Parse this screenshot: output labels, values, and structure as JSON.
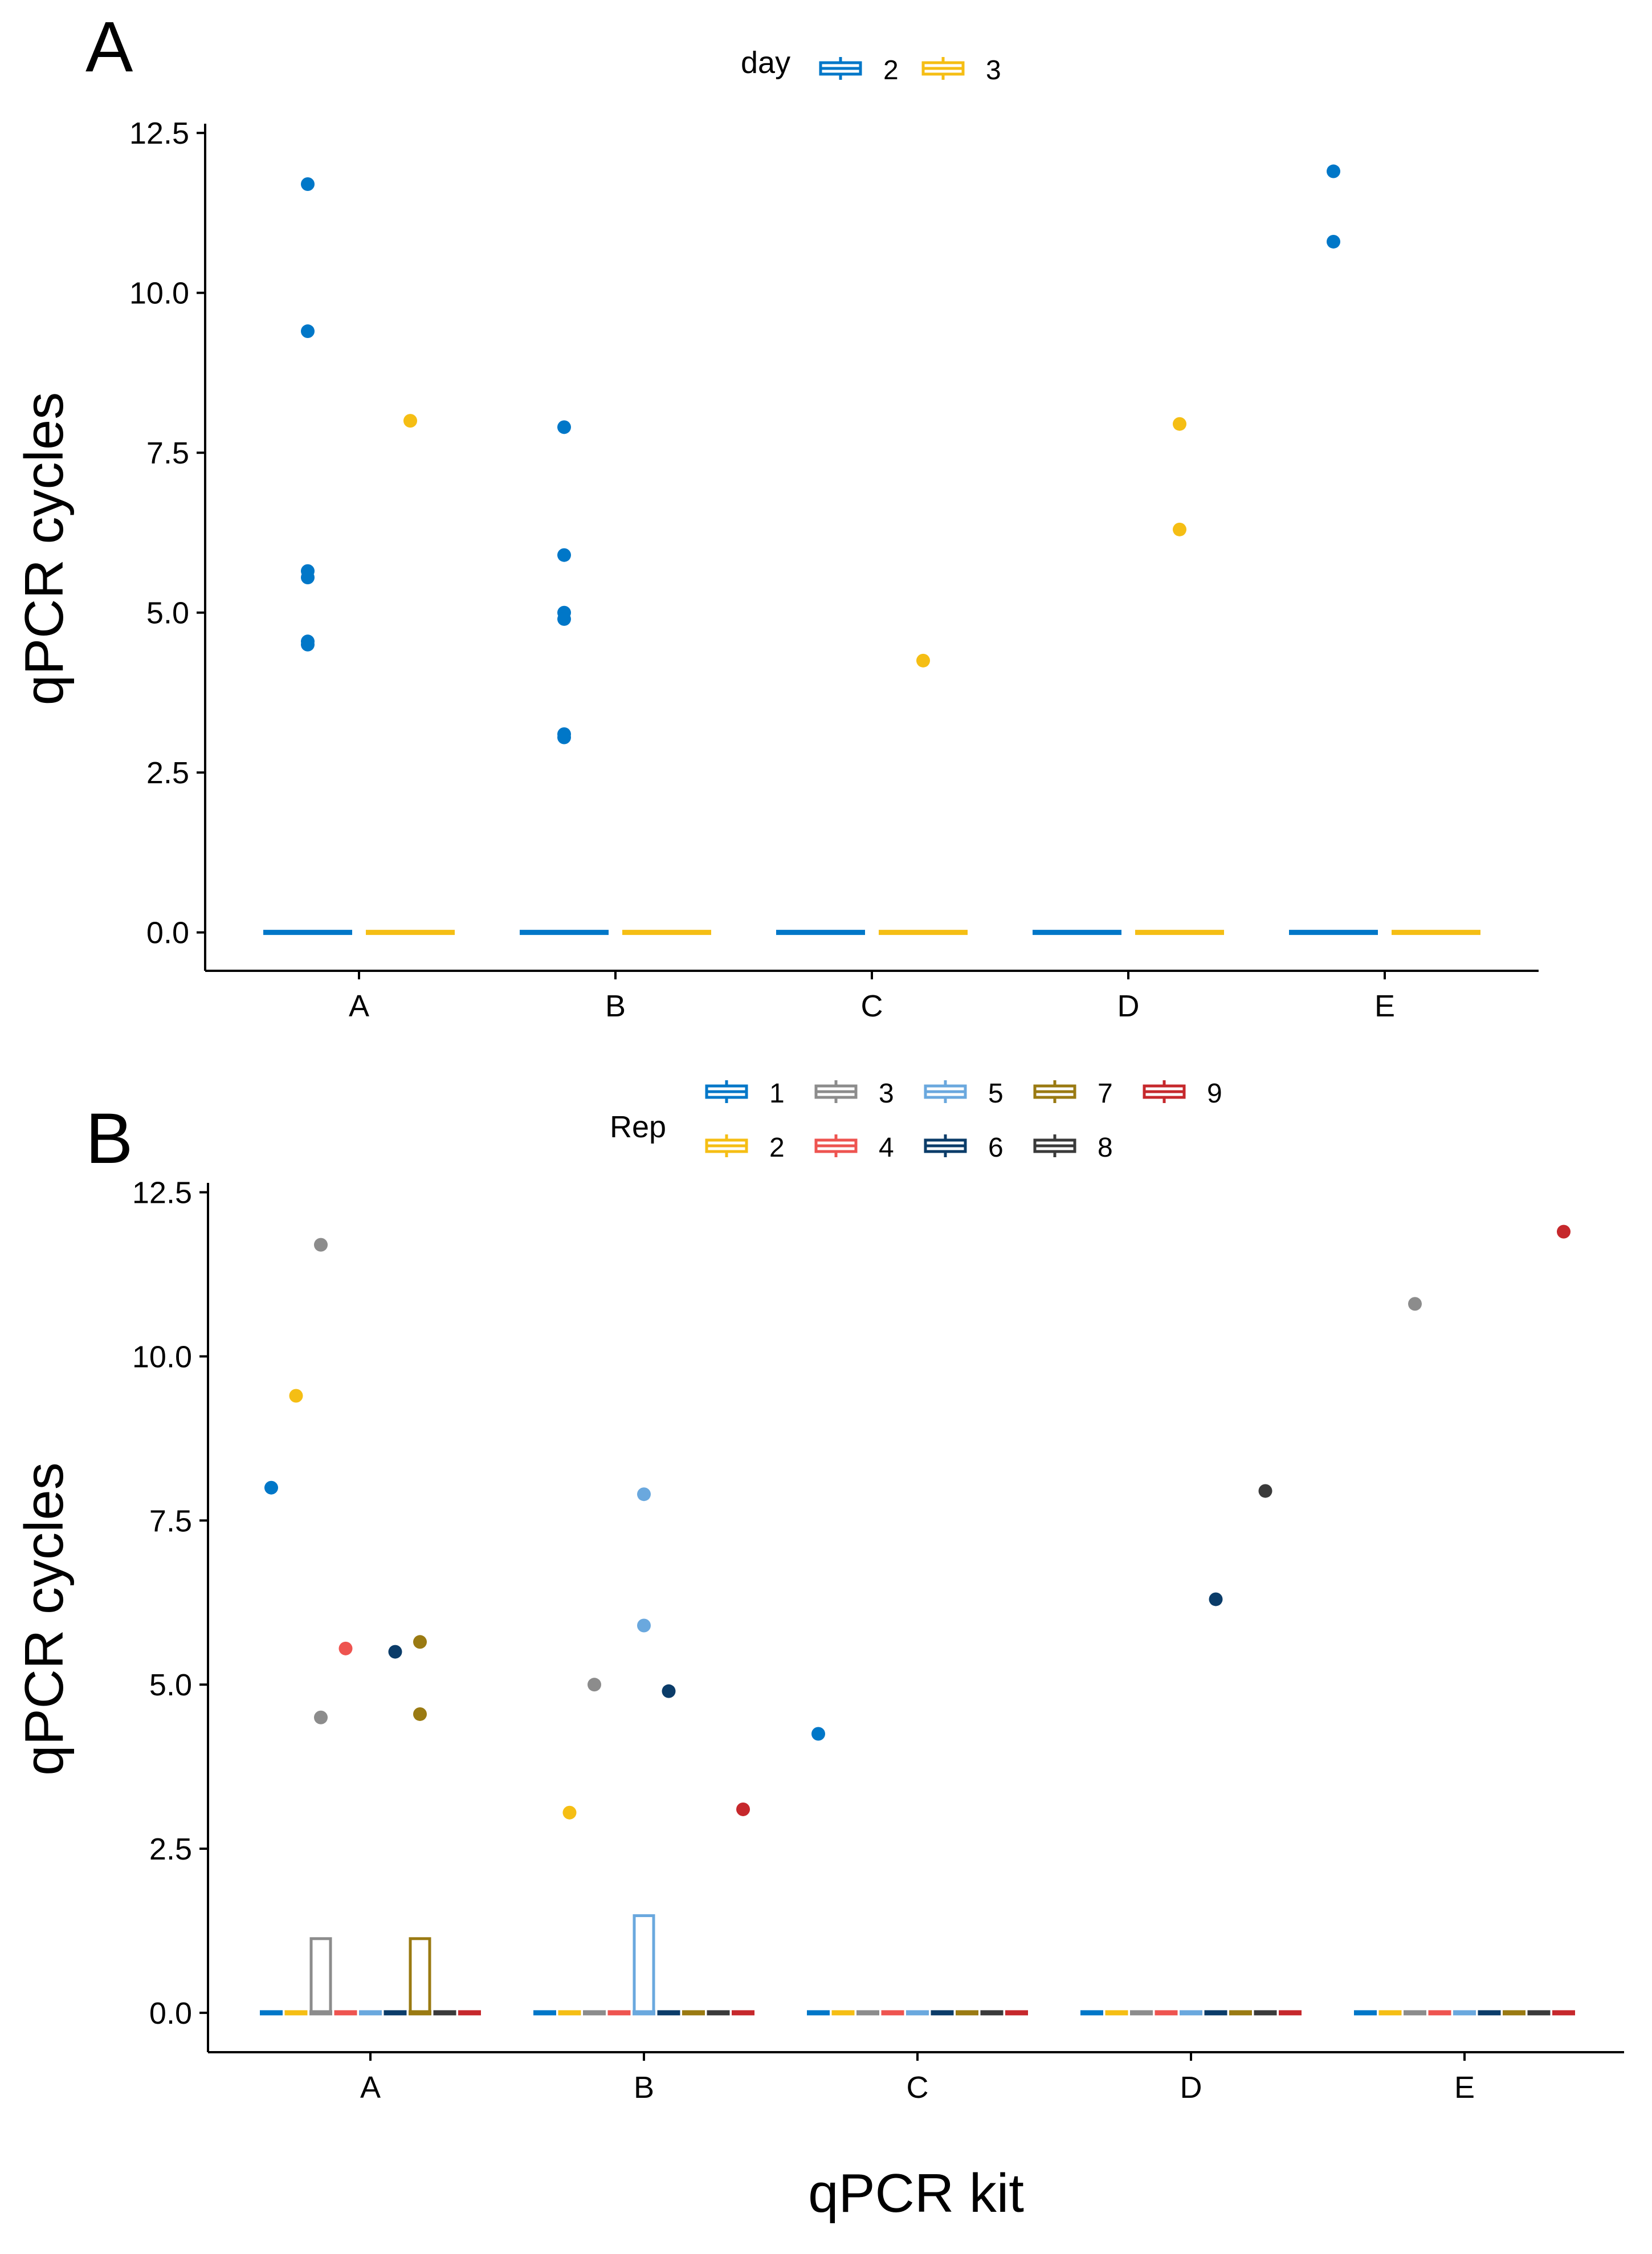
{
  "colors": {
    "axis": "#000000",
    "day": {
      "2": "#0077C8",
      "3": "#F5BE14"
    },
    "rep": {
      "1": "#0077C8",
      "2": "#F5BE14",
      "3": "#8C8C8C",
      "4": "#EE5450",
      "5": "#6AA8DE",
      "6": "#0B3C69",
      "7": "#9A7A12",
      "8": "#3A3A3A",
      "9": "#C6282C"
    }
  },
  "chart_data": [
    {
      "panel_label": "A",
      "type": "scatter",
      "categories": [
        "A",
        "B",
        "C",
        "D",
        "E"
      ],
      "xlabel": "",
      "ylabel": "qPCR cycles",
      "ylim": [
        -0.6,
        12.6
      ],
      "yticks": [
        "0.0",
        "2.5",
        "5.0",
        "7.5",
        "10.0",
        "12.5"
      ],
      "grid": false,
      "legend": {
        "position": "top",
        "title": "day",
        "entries": [
          "2",
          "3"
        ]
      },
      "series": [
        {
          "name": "2",
          "medians": [
            0,
            0,
            0,
            0,
            0
          ],
          "points": [
            {
              "x": "A",
              "y": 11.7
            },
            {
              "x": "A",
              "y": 9.4
            },
            {
              "x": "A",
              "y": 5.65
            },
            {
              "x": "A",
              "y": 5.55
            },
            {
              "x": "A",
              "y": 4.55
            },
            {
              "x": "A",
              "y": 4.5
            },
            {
              "x": "B",
              "y": 7.9
            },
            {
              "x": "B",
              "y": 5.9
            },
            {
              "x": "B",
              "y": 5.0
            },
            {
              "x": "B",
              "y": 4.9
            },
            {
              "x": "B",
              "y": 3.1
            },
            {
              "x": "B",
              "y": 3.05
            },
            {
              "x": "E",
              "y": 11.9
            },
            {
              "x": "E",
              "y": 10.8
            }
          ]
        },
        {
          "name": "3",
          "medians": [
            0,
            0,
            0,
            0,
            0
          ],
          "points": [
            {
              "x": "A",
              "y": 8.0
            },
            {
              "x": "C",
              "y": 4.25
            },
            {
              "x": "D",
              "y": 7.95
            },
            {
              "x": "D",
              "y": 6.3
            }
          ]
        }
      ]
    },
    {
      "panel_label": "B",
      "type": "scatter",
      "categories": [
        "A",
        "B",
        "C",
        "D",
        "E"
      ],
      "xlabel": "qPCR kit",
      "ylabel": "qPCR cycles",
      "ylim": [
        -0.6,
        12.6
      ],
      "yticks": [
        "0.0",
        "2.5",
        "5.0",
        "7.5",
        "10.0",
        "12.5"
      ],
      "grid": false,
      "legend": {
        "position": "top",
        "title": "Rep",
        "entries": [
          "1",
          "2",
          "3",
          "4",
          "5",
          "6",
          "7",
          "8",
          "9"
        ]
      },
      "boxes": [
        {
          "x": "A",
          "rep": "3",
          "ymin": 0,
          "ymax": 1.13
        },
        {
          "x": "A",
          "rep": "7",
          "ymin": 0,
          "ymax": 1.13
        },
        {
          "x": "B",
          "rep": "5",
          "ymin": 0,
          "ymax": 1.48
        }
      ],
      "series": [
        {
          "name": "1",
          "points": [
            {
              "x": "A",
              "y": 8.0
            },
            {
              "x": "C",
              "y": 4.25
            }
          ]
        },
        {
          "name": "2",
          "points": [
            {
              "x": "A",
              "y": 9.4
            },
            {
              "x": "B",
              "y": 3.05
            }
          ]
        },
        {
          "name": "3",
          "points": [
            {
              "x": "A",
              "y": 11.7
            },
            {
              "x": "A",
              "y": 4.5
            },
            {
              "x": "B",
              "y": 5.0
            },
            {
              "x": "E",
              "y": 10.8
            }
          ]
        },
        {
          "name": "4",
          "points": [
            {
              "x": "A",
              "y": 5.55
            }
          ]
        },
        {
          "name": "5",
          "points": [
            {
              "x": "B",
              "y": 7.9
            },
            {
              "x": "B",
              "y": 5.9
            }
          ]
        },
        {
          "name": "6",
          "points": [
            {
              "x": "A",
              "y": 5.5
            },
            {
              "x": "B",
              "y": 4.9
            },
            {
              "x": "D",
              "y": 6.3
            }
          ]
        },
        {
          "name": "7",
          "points": [
            {
              "x": "A",
              "y": 5.65
            },
            {
              "x": "A",
              "y": 4.55
            }
          ]
        },
        {
          "name": "8",
          "points": [
            {
              "x": "D",
              "y": 7.95
            }
          ]
        },
        {
          "name": "9",
          "points": [
            {
              "x": "B",
              "y": 3.1
            },
            {
              "x": "E",
              "y": 11.9
            }
          ]
        }
      ]
    }
  ]
}
